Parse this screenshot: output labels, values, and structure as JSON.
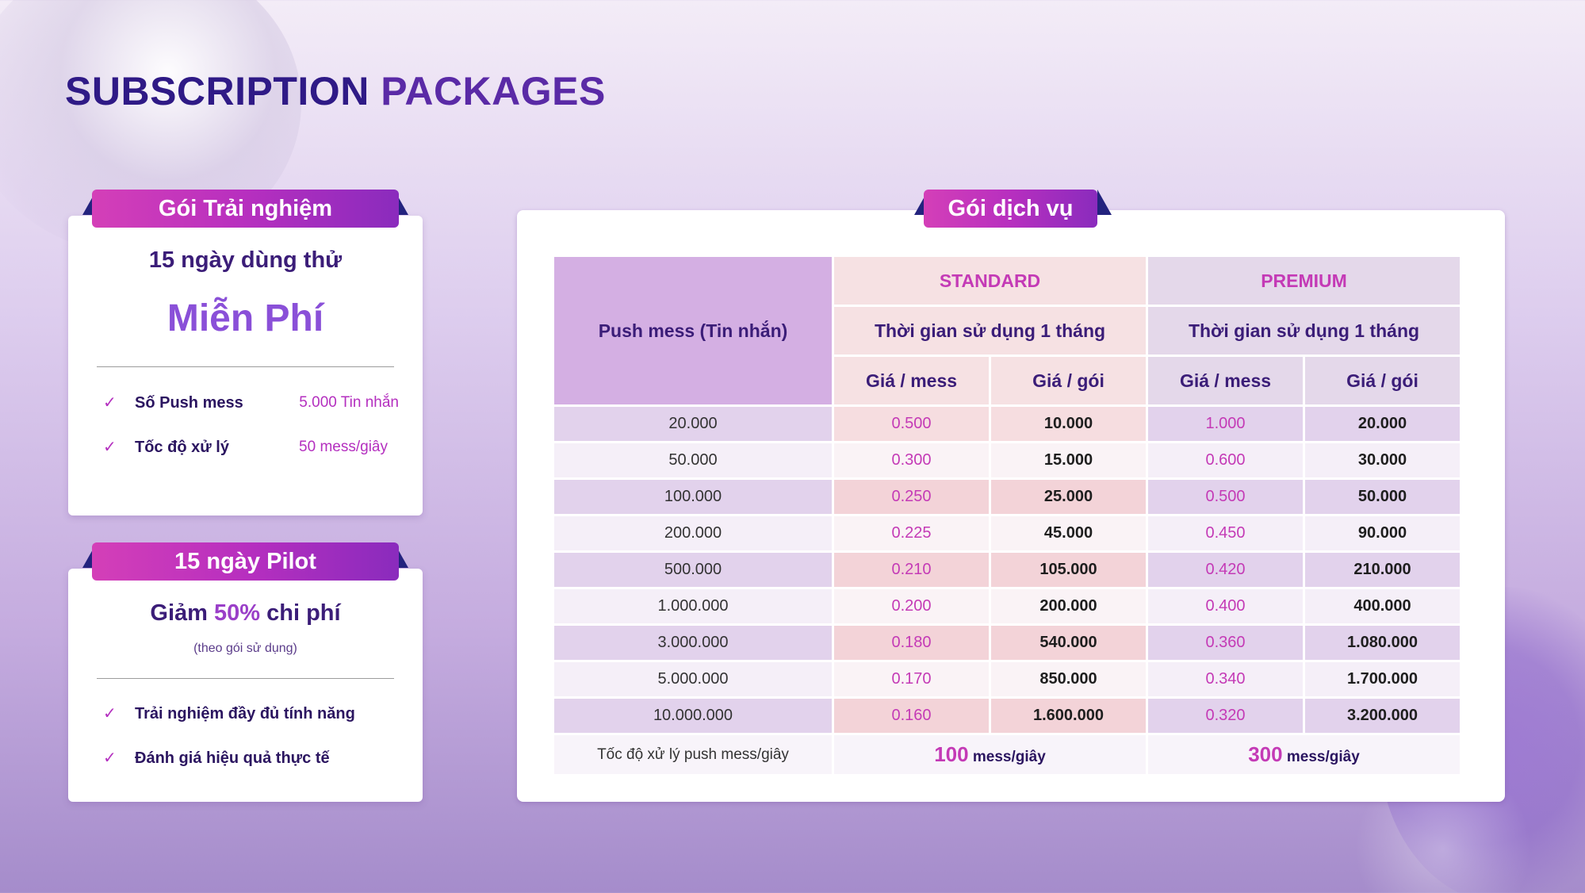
{
  "title": {
    "part1": "SUBSCRIPTION ",
    "part2": "PACKAGES"
  },
  "trial": {
    "ribbon": "Gói Trải nghiệm",
    "subtitle": "15 ngày dùng thử",
    "big": "Miễn Phí",
    "features": [
      {
        "label": "Số Push mess",
        "value": "5.000 Tin nhắn"
      },
      {
        "label": "Tốc độ xử lý",
        "value": "50 mess/giây"
      }
    ]
  },
  "pilot": {
    "ribbon": "15 ngày Pilot",
    "subtitle_pre": "Giảm ",
    "subtitle_pct": "50%",
    "subtitle_post": " chi phí",
    "note": "(theo gói sử dụng)",
    "features": [
      {
        "label": "Trải nghiệm đầy đủ tính năng"
      },
      {
        "label": "Đánh giá hiệu quả thực tế"
      }
    ]
  },
  "service": {
    "ribbon": "Gói dịch vụ",
    "header": {
      "push": "Push mess (Tin nhắn)",
      "standard": "STANDARD",
      "premium": "PREMIUM",
      "duration_std": "Thời gian sử dụng 1 tháng",
      "duration_prem": "Thời gian sử dụng 1 tháng",
      "price_mess": "Giá / mess",
      "price_pack": "Giá / gói"
    },
    "rows": [
      {
        "q": "20.000",
        "s_pm": "0.500",
        "s_pg": "10.000",
        "p_pm": "1.000",
        "p_pg": "20.000"
      },
      {
        "q": "50.000",
        "s_pm": "0.300",
        "s_pg": "15.000",
        "p_pm": "0.600",
        "p_pg": "30.000"
      },
      {
        "q": "100.000",
        "s_pm": "0.250",
        "s_pg": "25.000",
        "p_pm": "0.500",
        "p_pg": "50.000"
      },
      {
        "q": "200.000",
        "s_pm": "0.225",
        "s_pg": "45.000",
        "p_pm": "0.450",
        "p_pg": "90.000"
      },
      {
        "q": "500.000",
        "s_pm": "0.210",
        "s_pg": "105.000",
        "p_pm": "0.420",
        "p_pg": "210.000"
      },
      {
        "q": "1.000.000",
        "s_pm": "0.200",
        "s_pg": "200.000",
        "p_pm": "0.400",
        "p_pg": "400.000"
      },
      {
        "q": "3.000.000",
        "s_pm": "0.180",
        "s_pg": "540.000",
        "p_pm": "0.360",
        "p_pg": "1.080.000"
      },
      {
        "q": "5.000.000",
        "s_pm": "0.170",
        "s_pg": "850.000",
        "p_pm": "0.340",
        "p_pg": "1.700.000"
      },
      {
        "q": "10.000.000",
        "s_pm": "0.160",
        "s_pg": "1.600.000",
        "p_pm": "0.320",
        "p_pg": "3.200.000"
      }
    ],
    "speed": {
      "label": "Tốc độ xử lý push mess/giây",
      "std_num": "100",
      "prem_num": "300",
      "unit": " mess/giây"
    }
  }
}
